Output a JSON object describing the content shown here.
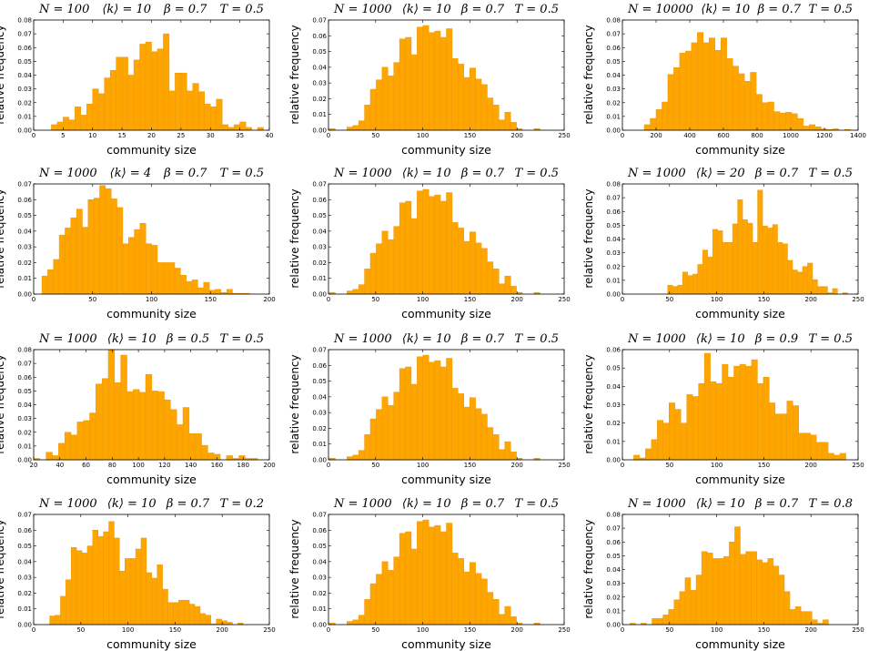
{
  "chart_data": [
    {
      "type": "bar",
      "title": [
        "N = 100",
        "⟨k⟩ = 10",
        "β = 0.7",
        "T = 0.5"
      ],
      "xlabel": "community size",
      "ylabel": "relative frequency",
      "xlim": [
        0,
        40
      ],
      "ylim": [
        0,
        0.08
      ],
      "xticks": [
        0,
        5,
        10,
        15,
        20,
        25,
        30,
        35,
        40
      ],
      "yticks": [
        0,
        0.01,
        0.02,
        0.03,
        0.04,
        0.05,
        0.06,
        0.07,
        0.08
      ],
      "bin_start": 3,
      "bin_width": 1,
      "values": [
        0.004,
        0.006,
        0.0095,
        0.0075,
        0.017,
        0.011,
        0.019,
        0.03,
        0.0265,
        0.038,
        0.0435,
        0.053,
        0.053,
        0.04,
        0.051,
        0.0625,
        0.064,
        0.057,
        0.059,
        0.07,
        0.0285,
        0.0415,
        0.0415,
        0.0285,
        0.034,
        0.028,
        0.019,
        0.017,
        0.0225,
        0.004,
        0.002,
        0.004,
        0.006,
        0.002,
        0,
        0.002
      ]
    },
    {
      "type": "bar",
      "title": [
        "N = 1000",
        "⟨k⟩ = 10",
        "β = 0.7",
        "T = 0.5"
      ],
      "xlabel": "community size",
      "ylabel": "relative frequency",
      "xlim": [
        0,
        250
      ],
      "ylim": [
        0,
        0.07
      ],
      "xticks": [
        0,
        50,
        100,
        150,
        200,
        250
      ],
      "yticks": [
        0,
        0.01,
        0.02,
        0.03,
        0.04,
        0.05,
        0.06,
        0.07
      ],
      "bin_start": 1,
      "bin_width": 6.2,
      "values": [
        0.001,
        0,
        0,
        0.002,
        0.003,
        0.006,
        0.016,
        0.026,
        0.032,
        0.04,
        0.0345,
        0.043,
        0.058,
        0.059,
        0.048,
        0.0655,
        0.0665,
        0.062,
        0.063,
        0.059,
        0.0645,
        0.0455,
        0.042,
        0.0335,
        0.0395,
        0.0325,
        0.029,
        0.0205,
        0.016,
        0.0065,
        0.0115,
        0.005,
        0.001,
        0,
        0,
        0.001
      ]
    },
    {
      "type": "bar",
      "title": [
        "N = 10000",
        "⟨k⟩ = 10",
        "β = 0.7",
        "T = 0.5"
      ],
      "xlabel": "community size",
      "ylabel": "relative frequency",
      "xlim": [
        0,
        1400
      ],
      "ylim": [
        0,
        0.08
      ],
      "xticks": [
        0,
        200,
        400,
        600,
        800,
        1000,
        1200,
        1400
      ],
      "yticks": [
        0,
        0.01,
        0.02,
        0.03,
        0.04,
        0.05,
        0.06,
        0.07,
        0.08
      ],
      "bin_start": 130,
      "bin_width": 35,
      "values": [
        0.004,
        0.0085,
        0.015,
        0.0205,
        0.0405,
        0.0455,
        0.056,
        0.0575,
        0.0635,
        0.071,
        0.0635,
        0.067,
        0.058,
        0.067,
        0.052,
        0.0465,
        0.041,
        0.0355,
        0.042,
        0.026,
        0.02,
        0.0205,
        0.0135,
        0.0125,
        0.013,
        0.012,
        0.0085,
        0.003,
        0.004,
        0.0025,
        0.001,
        0.0005,
        0.001,
        0,
        0.0005
      ]
    },
    {
      "type": "bar",
      "title": [
        "N = 1000",
        "⟨k⟩ = 4",
        "β = 0.7",
        "T = 0.5"
      ],
      "xlabel": "community size",
      "ylabel": "relative frequency",
      "xlim": [
        0,
        200
      ],
      "ylim": [
        0,
        0.07
      ],
      "xticks": [
        0,
        50,
        100,
        150,
        200
      ],
      "yticks": [
        0,
        0.01,
        0.02,
        0.03,
        0.04,
        0.05,
        0.06,
        0.07
      ],
      "bin_start": 7,
      "bin_width": 4.9,
      "values": [
        0.0115,
        0.0155,
        0.022,
        0.0375,
        0.042,
        0.0485,
        0.054,
        0.0425,
        0.06,
        0.061,
        0.069,
        0.067,
        0.0605,
        0.055,
        0.032,
        0.036,
        0.041,
        0.045,
        0.032,
        0.031,
        0.02,
        0.02,
        0.02,
        0.0165,
        0.012,
        0.008,
        0.009,
        0.004,
        0.0075,
        0.0025,
        0.003,
        0.001,
        0.003,
        0.0005,
        0.0005,
        0.0005
      ]
    },
    {
      "type": "bar",
      "title": [
        "N = 1000",
        "⟨k⟩ = 10",
        "β = 0.7",
        "T = 0.5"
      ],
      "xlabel": "community size",
      "ylabel": "relative frequency",
      "xlim": [
        0,
        250
      ],
      "ylim": [
        0,
        0.07
      ],
      "xticks": [
        0,
        50,
        100,
        150,
        200,
        250
      ],
      "yticks": [
        0,
        0.01,
        0.02,
        0.03,
        0.04,
        0.05,
        0.06,
        0.07
      ],
      "bin_start": 1,
      "bin_width": 6.2,
      "values": [
        0.001,
        0,
        0,
        0.002,
        0.003,
        0.006,
        0.016,
        0.026,
        0.032,
        0.04,
        0.0345,
        0.043,
        0.058,
        0.059,
        0.048,
        0.0655,
        0.0665,
        0.062,
        0.063,
        0.059,
        0.0645,
        0.0455,
        0.042,
        0.0335,
        0.0395,
        0.0325,
        0.029,
        0.0205,
        0.016,
        0.0065,
        0.0115,
        0.005,
        0.001,
        0,
        0,
        0.001
      ]
    },
    {
      "type": "bar",
      "title": [
        "N = 1000",
        "⟨k⟩ = 20",
        "β = 0.7",
        "T = 0.5"
      ],
      "xlabel": "community size",
      "ylabel": "relative frequency",
      "xlim": [
        0,
        250
      ],
      "ylim": [
        0,
        0.08
      ],
      "xticks": [
        0,
        50,
        100,
        150,
        200,
        250
      ],
      "yticks": [
        0,
        0.01,
        0.02,
        0.03,
        0.04,
        0.05,
        0.06,
        0.07,
        0.08
      ],
      "bin_start": 48,
      "bin_width": 5.3,
      "values": [
        0.0065,
        0.0055,
        0.0065,
        0.016,
        0.0135,
        0.0145,
        0.0215,
        0.032,
        0.027,
        0.047,
        0.046,
        0.0375,
        0.0375,
        0.051,
        0.0685,
        0.054,
        0.0515,
        0.0375,
        0.0755,
        0.0495,
        0.048,
        0.0505,
        0.0375,
        0.0365,
        0.0245,
        0.0175,
        0.016,
        0.02,
        0.0225,
        0.0105,
        0.0055,
        0.0055,
        0.001,
        0.004,
        0,
        0.001
      ]
    },
    {
      "type": "bar",
      "title": [
        "N = 1000",
        "⟨k⟩ = 10",
        "β = 0.5",
        "T = 0.5"
      ],
      "xlabel": "community size",
      "ylabel": "relative frequency",
      "xlim": [
        20,
        200
      ],
      "ylim": [
        0,
        0.08
      ],
      "xticks": [
        20,
        40,
        60,
        80,
        100,
        120,
        140,
        160,
        180,
        200
      ],
      "yticks": [
        0,
        0.01,
        0.02,
        0.03,
        0.04,
        0.05,
        0.06,
        0.07,
        0.08
      ],
      "bin_start": 20,
      "bin_width": 4.75,
      "values": [
        0.001,
        0,
        0.0055,
        0.003,
        0.012,
        0.02,
        0.018,
        0.0275,
        0.0285,
        0.034,
        0.055,
        0.059,
        0.08,
        0.056,
        0.076,
        0.0495,
        0.051,
        0.049,
        0.062,
        0.05,
        0.0495,
        0.0435,
        0.0365,
        0.0255,
        0.038,
        0.019,
        0.019,
        0.0105,
        0.005,
        0.004,
        0,
        0.003,
        0.001,
        0.003,
        0.001,
        0.001
      ]
    },
    {
      "type": "bar",
      "title": [
        "N = 1000",
        "⟨k⟩ = 10",
        "β = 0.7",
        "T = 0.5"
      ],
      "xlabel": "community size",
      "ylabel": "relative frequency",
      "xlim": [
        0,
        250
      ],
      "ylim": [
        0,
        0.07
      ],
      "xticks": [
        0,
        50,
        100,
        150,
        200,
        250
      ],
      "yticks": [
        0,
        0.01,
        0.02,
        0.03,
        0.04,
        0.05,
        0.06,
        0.07
      ],
      "bin_start": 1,
      "bin_width": 6.2,
      "values": [
        0.001,
        0,
        0,
        0.002,
        0.003,
        0.006,
        0.016,
        0.026,
        0.032,
        0.04,
        0.0345,
        0.043,
        0.058,
        0.059,
        0.048,
        0.0655,
        0.0665,
        0.062,
        0.063,
        0.059,
        0.0645,
        0.0455,
        0.042,
        0.0335,
        0.0395,
        0.0325,
        0.029,
        0.0205,
        0.016,
        0.0065,
        0.0115,
        0.005,
        0.001,
        0,
        0,
        0.001
      ]
    },
    {
      "type": "bar",
      "title": [
        "N = 1000",
        "⟨k⟩ = 10",
        "β = 0.9",
        "T = 0.5"
      ],
      "xlabel": "community size",
      "ylabel": "relative frequency",
      "xlim": [
        0,
        250
      ],
      "ylim": [
        0,
        0.06
      ],
      "xticks": [
        0,
        50,
        100,
        150,
        200,
        250
      ],
      "yticks": [
        0,
        0.01,
        0.02,
        0.03,
        0.04,
        0.05,
        0.06
      ],
      "bin_start": 12,
      "bin_width": 6.25,
      "values": [
        0.0025,
        0.001,
        0.006,
        0.011,
        0.0215,
        0.02,
        0.031,
        0.0275,
        0.02,
        0.0355,
        0.0345,
        0.0415,
        0.058,
        0.0425,
        0.0415,
        0.052,
        0.045,
        0.051,
        0.052,
        0.051,
        0.0545,
        0.0415,
        0.045,
        0.031,
        0.025,
        0.025,
        0.032,
        0.0295,
        0.0145,
        0.0145,
        0.0135,
        0.0095,
        0.0095,
        0.0035,
        0.0025,
        0.0035
      ]
    },
    {
      "type": "bar",
      "title": [
        "N = 1000",
        "⟨k⟩ = 10",
        "β = 0.7",
        "T = 0.2"
      ],
      "xlabel": "community size",
      "ylabel": "relative frequency",
      "xlim": [
        0,
        250
      ],
      "ylim": [
        0,
        0.07
      ],
      "xticks": [
        0,
        50,
        100,
        150,
        200,
        250
      ],
      "yticks": [
        0,
        0.01,
        0.02,
        0.03,
        0.04,
        0.05,
        0.06,
        0.07
      ],
      "bin_start": 17,
      "bin_width": 5.7,
      "values": [
        0.0055,
        0.006,
        0.018,
        0.0285,
        0.049,
        0.047,
        0.0455,
        0.05,
        0.06,
        0.056,
        0.059,
        0.0655,
        0.055,
        0.034,
        0.042,
        0.042,
        0.048,
        0.055,
        0.033,
        0.0295,
        0.038,
        0.0225,
        0.014,
        0.014,
        0.0155,
        0.0155,
        0.013,
        0.0115,
        0.007,
        0.006,
        0.0005,
        0.0035,
        0.0025,
        0.0015,
        0,
        0.001
      ]
    },
    {
      "type": "bar",
      "title": [
        "N = 1000",
        "⟨k⟩ = 10",
        "β = 0.7",
        "T = 0.5"
      ],
      "xlabel": "community size",
      "ylabel": "relative frequency",
      "xlim": [
        0,
        250
      ],
      "ylim": [
        0,
        0.07
      ],
      "xticks": [
        0,
        50,
        100,
        150,
        200,
        250
      ],
      "yticks": [
        0,
        0.01,
        0.02,
        0.03,
        0.04,
        0.05,
        0.06,
        0.07
      ],
      "bin_start": 1,
      "bin_width": 6.2,
      "values": [
        0.001,
        0,
        0,
        0.002,
        0.003,
        0.006,
        0.016,
        0.026,
        0.032,
        0.04,
        0.0345,
        0.043,
        0.058,
        0.059,
        0.048,
        0.0655,
        0.0665,
        0.062,
        0.063,
        0.059,
        0.0645,
        0.0455,
        0.042,
        0.0335,
        0.0395,
        0.0325,
        0.029,
        0.0205,
        0.016,
        0.0065,
        0.0115,
        0.005,
        0.001,
        0,
        0,
        0.001
      ]
    },
    {
      "type": "bar",
      "title": [
        "N = 1000",
        "⟨k⟩ = 10",
        "β = 0.7",
        "T = 0.8"
      ],
      "xlabel": "community size",
      "ylabel": "relative frequency",
      "xlim": [
        0,
        250
      ],
      "ylim": [
        0,
        0.08
      ],
      "xticks": [
        0,
        50,
        100,
        150,
        200,
        250
      ],
      "yticks": [
        0,
        0.01,
        0.02,
        0.03,
        0.04,
        0.05,
        0.06,
        0.07,
        0.08
      ],
      "bin_start": 8,
      "bin_width": 5.85,
      "values": [
        0.001,
        0,
        0.001,
        0,
        0.0045,
        0.0045,
        0.007,
        0.011,
        0.018,
        0.024,
        0.034,
        0.025,
        0.036,
        0.053,
        0.052,
        0.048,
        0.048,
        0.0495,
        0.06,
        0.071,
        0.051,
        0.053,
        0.053,
        0.047,
        0.045,
        0.048,
        0.0425,
        0.036,
        0.024,
        0.011,
        0.013,
        0.0095,
        0.0095,
        0.0035,
        0.001,
        0.0035
      ]
    }
  ],
  "colors": {
    "bar_fill": "#FFA500",
    "bar_edge": "#E89A10"
  }
}
